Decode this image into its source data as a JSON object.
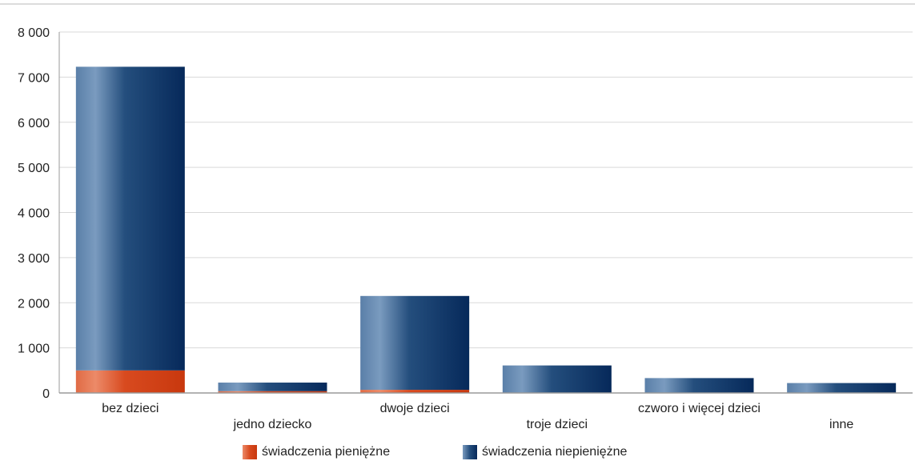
{
  "chart_data": {
    "type": "bar",
    "stacked": true,
    "categories": [
      "bez dzieci",
      "jedno dziecko",
      "dwoje dzieci",
      "troje dzieci",
      "czworo i więcej dzieci",
      "inne"
    ],
    "series": [
      {
        "name": "świadczenia pieniężne",
        "values": [
          500,
          40,
          70,
          0,
          0,
          0
        ],
        "color": "#d2441b"
      },
      {
        "name": "świadczenia niepieniężne",
        "values": [
          6730,
          190,
          2080,
          610,
          330,
          220
        ],
        "color": "#0e3765"
      }
    ],
    "ylim": [
      0,
      8000
    ],
    "yticks": [
      "0",
      "1 000",
      "2 000",
      "3 000",
      "4 000",
      "5 000",
      "6 000",
      "7 000",
      "8 000"
    ],
    "grid": true,
    "legend_position": "bottom"
  }
}
